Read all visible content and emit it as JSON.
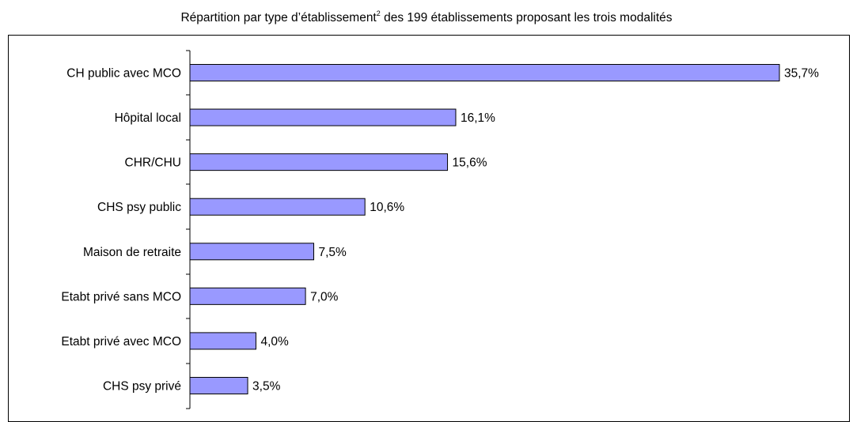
{
  "chart_data": {
    "type": "bar",
    "orientation": "horizontal",
    "title_parts": {
      "before": "Répartition par type d’établissement",
      "superscript": "2",
      "after": " des 199 établissements proposant les trois modalités"
    },
    "categories": [
      "CH public avec MCO",
      "Hôpital local",
      "CHR/CHU",
      "CHS psy public",
      "Maison de retraite",
      "Etabt privé sans MCO",
      "Etabt privé avec MCO",
      "CHS psy privé"
    ],
    "values": [
      35.7,
      16.1,
      15.6,
      10.6,
      7.5,
      7.0,
      4.0,
      3.5
    ],
    "value_labels": [
      "35,7%",
      "16,1%",
      "15,6%",
      "10,6%",
      "7,5%",
      "7,0%",
      "4,0%",
      "3,5%"
    ],
    "xlim": [
      0,
      35.7
    ],
    "grid": false,
    "legend": "none",
    "colors": {
      "bar_fill": "#9999ff",
      "bar_stroke": "#000000"
    }
  }
}
